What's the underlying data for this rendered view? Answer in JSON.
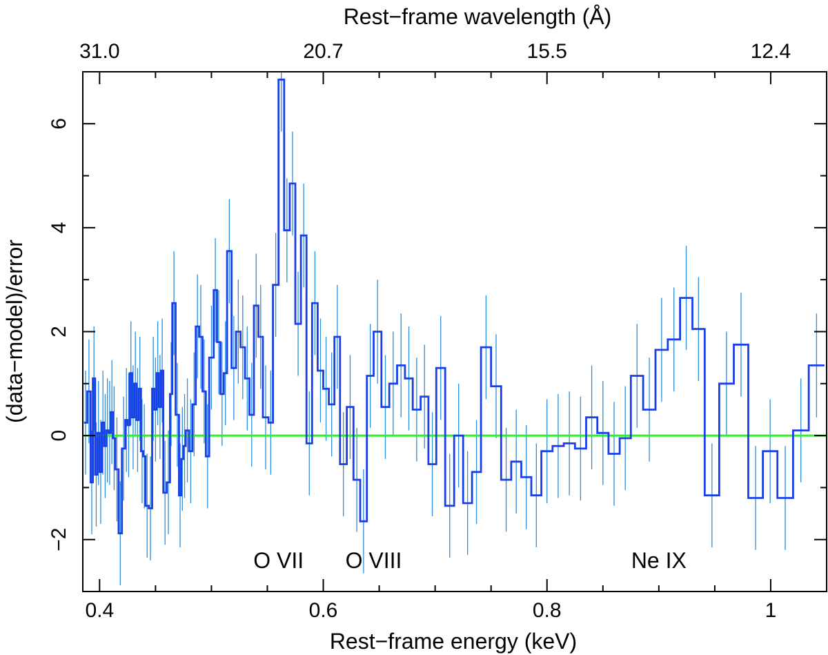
{
  "chart_data": {
    "type": "line",
    "subtype": "step-residuals",
    "xlabel": "Rest−frame energy (keV)",
    "x2label": "Rest−frame wavelength (Å)",
    "ylabel": "(data−model)/error",
    "xlim": [
      0.385,
      1.05
    ],
    "ylim": [
      -3.0,
      7.0
    ],
    "xticks": [
      {
        "value": 0.4,
        "label": "0.4"
      },
      {
        "value": 0.6,
        "label": "0.6"
      },
      {
        "value": 0.8,
        "label": "0.8"
      },
      {
        "value": 1.0,
        "label": "1"
      }
    ],
    "x2ticks": [
      {
        "value": 0.4,
        "label": "31.0"
      },
      {
        "value": 0.6,
        "label": "20.7"
      },
      {
        "value": 0.8,
        "label": "15.5"
      },
      {
        "value": 1.0,
        "label": "12.4"
      }
    ],
    "yticks": [
      {
        "value": -2,
        "label": "−2"
      },
      {
        "value": 0,
        "label": "0"
      },
      {
        "value": 2,
        "label": "2"
      },
      {
        "value": 4,
        "label": "4"
      },
      {
        "value": 6,
        "label": "6"
      }
    ],
    "reference_line": {
      "y": 0,
      "color": "#33ee33"
    },
    "annotations": [
      {
        "text": "O VII",
        "x": 0.56,
        "y": -2.55
      },
      {
        "text": "O VIII",
        "x": 0.645,
        "y": -2.55
      },
      {
        "text": "Ne IX",
        "x": 0.9,
        "y": -2.55
      }
    ],
    "series": [
      {
        "name": "residuals",
        "color": "#1a3fe6",
        "error_color": "#2a8fe0",
        "bins": [
          [
            0.386,
            0.389,
            0.25,
            1.0
          ],
          [
            0.389,
            0.392,
            0.85,
            1.0
          ],
          [
            0.392,
            0.394,
            -0.9,
            1.0
          ],
          [
            0.394,
            0.396,
            1.1,
            1.0
          ],
          [
            0.396,
            0.398,
            -0.75,
            1.0
          ],
          [
            0.398,
            0.4,
            0.05,
            1.0
          ],
          [
            0.4,
            0.402,
            -0.7,
            1.0
          ],
          [
            0.402,
            0.404,
            0.25,
            1.0
          ],
          [
            0.404,
            0.406,
            -0.2,
            1.0
          ],
          [
            0.406,
            0.408,
            0.1,
            1.0
          ],
          [
            0.408,
            0.41,
            0.05,
            1.0
          ],
          [
            0.41,
            0.412,
            0.45,
            1.0
          ],
          [
            0.412,
            0.414,
            -0.05,
            1.0
          ],
          [
            0.414,
            0.417,
            -0.65,
            1.0
          ],
          [
            0.417,
            0.42,
            -1.88,
            1.0
          ],
          [
            0.42,
            0.423,
            -0.25,
            1.0
          ],
          [
            0.423,
            0.425,
            0.3,
            1.0
          ],
          [
            0.425,
            0.427,
            0.2,
            1.0
          ],
          [
            0.427,
            0.429,
            1.2,
            1.0
          ],
          [
            0.429,
            0.431,
            0.35,
            1.0
          ],
          [
            0.431,
            0.433,
            1.0,
            1.0
          ],
          [
            0.433,
            0.435,
            0.3,
            1.0
          ],
          [
            0.435,
            0.437,
            0.9,
            1.0
          ],
          [
            0.437,
            0.439,
            -0.3,
            1.0
          ],
          [
            0.439,
            0.441,
            -0.4,
            1.0
          ],
          [
            0.441,
            0.444,
            -1.35,
            1.0
          ],
          [
            0.444,
            0.447,
            -1.4,
            1.0
          ],
          [
            0.447,
            0.449,
            0.9,
            1.0
          ],
          [
            0.449,
            0.451,
            0.5,
            1.0
          ],
          [
            0.451,
            0.453,
            1.2,
            1.0
          ],
          [
            0.453,
            0.455,
            0.55,
            1.0
          ],
          [
            0.455,
            0.457,
            1.25,
            1.0
          ],
          [
            0.457,
            0.46,
            -1.1,
            1.0
          ],
          [
            0.46,
            0.463,
            -0.9,
            1.0
          ],
          [
            0.463,
            0.465,
            0.8,
            1.0
          ],
          [
            0.465,
            0.468,
            2.55,
            1.0
          ],
          [
            0.468,
            0.471,
            0.4,
            1.0
          ],
          [
            0.471,
            0.473,
            -1.15,
            1.0
          ],
          [
            0.473,
            0.475,
            -0.45,
            1.0
          ],
          [
            0.475,
            0.477,
            -0.2,
            1.0
          ],
          [
            0.477,
            0.48,
            0.1,
            1.0
          ],
          [
            0.48,
            0.483,
            -0.3,
            1.0
          ],
          [
            0.483,
            0.486,
            0.6,
            1.0
          ],
          [
            0.486,
            0.489,
            2.1,
            1.0
          ],
          [
            0.489,
            0.492,
            1.9,
            1.0
          ],
          [
            0.492,
            0.495,
            0.85,
            1.0
          ],
          [
            0.495,
            0.498,
            -0.4,
            1.0
          ],
          [
            0.498,
            0.502,
            1.5,
            1.0
          ],
          [
            0.502,
            0.505,
            2.8,
            1.0
          ],
          [
            0.505,
            0.508,
            1.8,
            1.0
          ],
          [
            0.508,
            0.511,
            0.8,
            1.0
          ],
          [
            0.511,
            0.514,
            1.2,
            1.0
          ],
          [
            0.514,
            0.518,
            3.55,
            1.0
          ],
          [
            0.518,
            0.522,
            1.3,
            1.0
          ],
          [
            0.522,
            0.526,
            2.0,
            1.0
          ],
          [
            0.526,
            0.53,
            1.7,
            1.0
          ],
          [
            0.53,
            0.534,
            1.1,
            1.0
          ],
          [
            0.534,
            0.538,
            0.4,
            1.0
          ],
          [
            0.538,
            0.542,
            2.5,
            1.0
          ],
          [
            0.542,
            0.546,
            1.9,
            1.0
          ],
          [
            0.546,
            0.551,
            0.35,
            1.0
          ],
          [
            0.551,
            0.555,
            0.25,
            1.0
          ],
          [
            0.555,
            0.56,
            2.9,
            1.0
          ],
          [
            0.56,
            0.565,
            6.85,
            1.0
          ],
          [
            0.565,
            0.57,
            3.95,
            1.0
          ],
          [
            0.57,
            0.575,
            4.85,
            1.0
          ],
          [
            0.575,
            0.58,
            2.15,
            1.0
          ],
          [
            0.58,
            0.585,
            3.85,
            1.0
          ],
          [
            0.585,
            0.59,
            -0.15,
            1.0
          ],
          [
            0.59,
            0.595,
            2.55,
            1.0
          ],
          [
            0.595,
            0.6,
            1.25,
            1.0
          ],
          [
            0.6,
            0.605,
            0.9,
            1.0
          ],
          [
            0.605,
            0.61,
            0.6,
            1.0
          ],
          [
            0.61,
            0.615,
            1.9,
            1.0
          ],
          [
            0.615,
            0.621,
            -0.55,
            1.0
          ],
          [
            0.621,
            0.627,
            0.55,
            1.0
          ],
          [
            0.627,
            0.633,
            -0.85,
            1.0
          ],
          [
            0.633,
            0.639,
            -1.65,
            1.0
          ],
          [
            0.639,
            0.645,
            1.15,
            1.0
          ],
          [
            0.645,
            0.652,
            2.0,
            1.0
          ],
          [
            0.652,
            0.659,
            0.55,
            1.0
          ],
          [
            0.659,
            0.666,
            1.0,
            1.0
          ],
          [
            0.666,
            0.673,
            1.35,
            1.0
          ],
          [
            0.673,
            0.68,
            1.1,
            1.0
          ],
          [
            0.68,
            0.687,
            0.5,
            1.0
          ],
          [
            0.687,
            0.694,
            0.75,
            1.0
          ],
          [
            0.694,
            0.701,
            -0.55,
            1.0
          ],
          [
            0.701,
            0.709,
            1.3,
            1.0
          ],
          [
            0.709,
            0.717,
            -1.35,
            1.0
          ],
          [
            0.717,
            0.725,
            0.0,
            1.0
          ],
          [
            0.725,
            0.733,
            -1.3,
            1.0
          ],
          [
            0.733,
            0.741,
            -0.7,
            1.0
          ],
          [
            0.741,
            0.75,
            1.7,
            1.0
          ],
          [
            0.75,
            0.759,
            0.95,
            1.0
          ],
          [
            0.759,
            0.768,
            -0.85,
            1.0
          ],
          [
            0.768,
            0.777,
            -0.5,
            1.0
          ],
          [
            0.777,
            0.786,
            -0.8,
            1.0
          ],
          [
            0.786,
            0.795,
            -1.15,
            1.0
          ],
          [
            0.795,
            0.805,
            -0.3,
            1.0
          ],
          [
            0.805,
            0.815,
            -0.2,
            1.0
          ],
          [
            0.815,
            0.825,
            -0.15,
            1.0
          ],
          [
            0.825,
            0.835,
            -0.25,
            1.0
          ],
          [
            0.835,
            0.845,
            0.35,
            1.0
          ],
          [
            0.845,
            0.855,
            0.05,
            1.0
          ],
          [
            0.855,
            0.865,
            -0.35,
            1.0
          ],
          [
            0.865,
            0.875,
            -0.05,
            1.0
          ],
          [
            0.875,
            0.886,
            1.15,
            1.0
          ],
          [
            0.886,
            0.897,
            0.5,
            1.0
          ],
          [
            0.897,
            0.908,
            1.65,
            1.0
          ],
          [
            0.908,
            0.919,
            1.85,
            1.0
          ],
          [
            0.919,
            0.93,
            2.65,
            1.0
          ],
          [
            0.93,
            0.941,
            2.05,
            1.0
          ],
          [
            0.941,
            0.954,
            -1.15,
            1.0
          ],
          [
            0.954,
            0.967,
            1.0,
            1.0
          ],
          [
            0.967,
            0.98,
            1.75,
            1.0
          ],
          [
            0.98,
            0.993,
            -1.2,
            1.0
          ],
          [
            0.993,
            1.006,
            -0.3,
            1.0
          ],
          [
            1.006,
            1.02,
            -1.2,
            1.0
          ],
          [
            1.02,
            1.034,
            0.1,
            1.0
          ],
          [
            1.034,
            1.048,
            1.35,
            1.0
          ]
        ]
      }
    ]
  }
}
